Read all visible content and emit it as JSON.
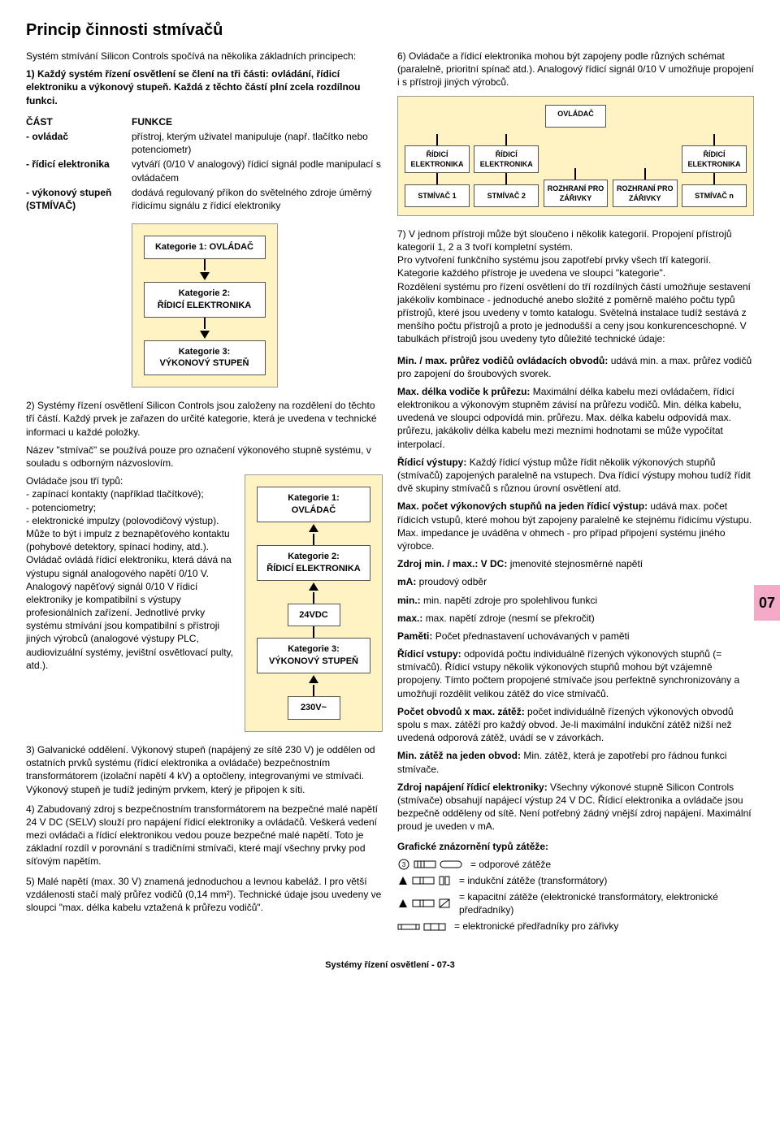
{
  "title": "Princip činnosti stmívačů",
  "intro": "Systém stmívání Silicon Controls spočívá na několika základních principech:",
  "p1": "1) Každý systém řízení osvětlení se člení na tři části: ovládání, řídicí elektroniku a výkonový stupeň. Každá z těchto částí plní zcela rozdílnou funkci.",
  "funcTable": {
    "head": {
      "c1": "ČÁST",
      "c2": "FUNKCE"
    },
    "rows": [
      {
        "c1": "- ovládač",
        "c2": "přístroj, kterým uživatel manipuluje (např. tlačítko nebo potenciometr)"
      },
      {
        "c1": "- řídicí elektronika",
        "c2": "vytváří (0/10 V analogový) řídicí signál podle manipulací s ovládačem"
      },
      {
        "c1": "- výkonový stupeň (STMÍVAČ)",
        "c2": "dodává regulovaný příkon do světelného zdroje úměrný řídicímu signálu z řídicí elektroniky"
      }
    ]
  },
  "diagA": {
    "b1": "Kategorie 1: OVLÁDAČ",
    "b2": "Kategorie 2:\nŘÍDICÍ ELEKTRONIKA",
    "b3": "Kategorie 3:\nVÝKONOVÝ STUPEŇ"
  },
  "p2": "2) Systémy řízení osvětlení Silicon Controls jsou založeny na rozdělení do těchto tří částí. Každý prvek je zařazen do určité kategorie, která je uvedena v technické informaci u každé položky.",
  "p2b": "Název \"stmívač\" se používá pouze pro označení výkonového stupně systému, v souladu s odborným názvoslovím.",
  "p2c": "Ovládače jsou tří typů:\n- zapínací kontakty (například tlačítkové);\n- potenciometry;\n- elektronické impulzy (polovodičový výstup). Může to být i impulz z beznapěťového kontaktu (pohybové detektory, spínací hodiny, atd.).\nOvládač ovládá řídicí elektroniku, která dává na výstupu signál analogového napětí 0/10 V.\nAnalogový napěťový signál 0/10 V řídicí elektroniky je kompatibilní s výstupy profesionálních zařízení. Jednotlivé prvky systému stmívání jsou kompatibilní s přístroji jiných výrobců (analogové výstupy PLC, audiovizuální systémy, jevištní osvětlovací pulty, atd.).",
  "diagB": {
    "b1": "Kategorie 1: OVLÁDAČ",
    "b2": "Kategorie 2:\nŘÍDICÍ ELEKTRONIKA",
    "v1": "24VDC",
    "b3": "Kategorie 3:\nVÝKONOVÝ STUPEŇ",
    "v2": "230V~"
  },
  "p3": "3) Galvanické oddělení. Výkonový stupeň (napájený ze sítě 230 V) je oddělen od ostatních prvků systému (řídicí elektronika a ovládače) bezpečnostním transformátorem (izolační napětí 4 kV) a optočleny, integrovanými ve stmívači. Výkonový stupeň je tudíž jediným prvkem, který je připojen k síti.",
  "p4": "4) Zabudovaný zdroj s bezpečnostním transformátorem na bezpečné malé napětí 24 V DC (SELV) slouží pro napájení řídicí elektroniky a ovládačů. Veškerá vedení mezi ovládači a řídicí elektronikou vedou pouze bezpečné malé napětí. Toto je základní rozdíl v porovnání s tradičními stmívači, které mají všechny prvky pod síťovým napětím.",
  "p5": "5) Malé napětí (max. 30 V) znamená jednoduchou a levnou kabeláž. I pro větší vzdálenosti stačí malý průřez vodičů (0,14 mm²). Technické údaje jsou uvedeny ve sloupci \"max. délka kabelu vztažená k průřezu vodičů\".",
  "p6": "6) Ovládače a řídicí elektronika mohou být zapojeny podle různých schémat (paralelně, prioritní spínač atd.). Analogový řídicí signál 0/10 V umožňuje propojení i s přístroji jiných výrobců.",
  "diagC": {
    "top": "OVLÁDAČ",
    "row1": [
      "ŘÍDICÍ ELEKTRONIKA",
      "ŘÍDICÍ ELEKTRONIKA",
      "",
      "",
      "ŘÍDICÍ ELEKTRONIKA"
    ],
    "row2": [
      "STMÍVAČ 1",
      "STMÍVAČ 2",
      "ROZHRANÍ PRO ZÁŘIVKY",
      "ROZHRANÍ PRO ZÁŘIVKY",
      "STMÍVAČ n"
    ]
  },
  "p7": "7) V jednom přístroji může být sloučeno i několik kategorií. Propojení přístrojů kategorií 1, 2 a 3 tvoří kompletní systém.\nPro vytvoření funkčního systému jsou zapotřebí prvky všech tří kategorií. Kategorie každého přístroje je uvedena ve sloupci \"kategorie\".\nRozdělení systému pro řízení osvětlení do tří rozdílných částí umožňuje sestavení jakékoliv kombinace - jednoduché anebo složité z poměrně malého počtu typů přístrojů, které jsou uvedeny v tomto katalogu. Světelná instalace tudíž sestává z menšího počtu přístrojů a proto je jednodušší a ceny jsou konkurenceschopné. V tabulkách přístrojů jsou uvedeny tyto důležité technické údaje:",
  "defs": [
    {
      "t": "Min. / max. průřez vodičů ovládacích obvodů:",
      "d": "udává min. a max. průřez vodičů pro zapojení do šroubových svorek."
    },
    {
      "t": "Max. délka vodiče k průřezu:",
      "d": "Maximální délka kabelu mezi ovládačem, řídicí elektronikou a výkonovým stupněm závisí na průřezu vodičů. Min. délka kabelu, uvedená ve sloupci odpovídá min. průřezu. Max. délka kabelu odpovídá max. průřezu, jakákoliv délka kabelu mezi mezními hodnotami se může vypočítat interpolací."
    },
    {
      "t": "Řídicí výstupy:",
      "d": "Každý řídicí výstup může řídit několik výkonových stupňů (stmívačů) zapojených paralelně na vstupech. Dva řídicí výstupy mohou tudíž řídit dvě skupiny stmívačů s různou úrovní osvětlení atd."
    },
    {
      "t": "Max. počet výkonových stupňů na jeden řídicí výstup:",
      "d": "udává max. počet řídicích vstupů, které mohou být zapojeny paralelně ke stejnému řídicímu výstupu. Max. impedance je uváděna v ohmech - pro případ připojení systému jiného výrobce."
    },
    {
      "t": "Zdroj min. / max.: V DC:",
      "d": "jmenovité stejnosměrné napětí"
    },
    {
      "t": "mA:",
      "d": "proudový odběr"
    },
    {
      "t": "min.:",
      "d": "min. napětí zdroje pro spolehlivou funkci"
    },
    {
      "t": "max.:",
      "d": "max. napětí zdroje (nesmí se překročit)"
    },
    {
      "t": "Paměti:",
      "d": "Počet přednastavení uchovávaných v paměti"
    },
    {
      "t": "Řídicí vstupy:",
      "d": "odpovídá počtu individuálně řízených výkonových stupňů (= stmívačů). Řídicí vstupy několik výkonových stupňů mohou být vzájemně propojeny. Tímto počtem propojené stmívače jsou perfektně synchronizovány a umožňují rozdělit velikou zátěž do více stmívačů."
    },
    {
      "t": "Počet obvodů x max. zátěž:",
      "d": "počet individuálně řízených výkonových obvodů spolu s max. zátěží pro každý obvod. Je-li maximální indukční zátěž nižší než uvedená odporová zátěž, uvádí se v závorkách."
    },
    {
      "t": "Min. zátěž na jeden obvod:",
      "d": "Min. zátěž, která je zapotřebí pro řádnou funkci stmívače."
    },
    {
      "t": "Zdroj napájení řídicí elektroniky:",
      "d": "Všechny výkonové stupně Silicon Controls (stmívače) obsahují napájecí výstup 24 V DC. Řídicí elektronika a ovládače jsou bezpečně odděleny od sítě. Není potřebný žádný vnější zdroj napájení. Maximální proud je uveden v mA."
    }
  ],
  "loadsTitle": "Grafické znázornění typů zátěže:",
  "loads": [
    "= odporové zátěže",
    "= indukční zátěže (transformátory)",
    "= kapacitní zátěže (elektronické transformátory, elektronické předřadníky)",
    "= elektronické předřadníky pro zářivky"
  ],
  "pageNum": "07",
  "footer": "Systémy řízení osvětlení - 07-3"
}
